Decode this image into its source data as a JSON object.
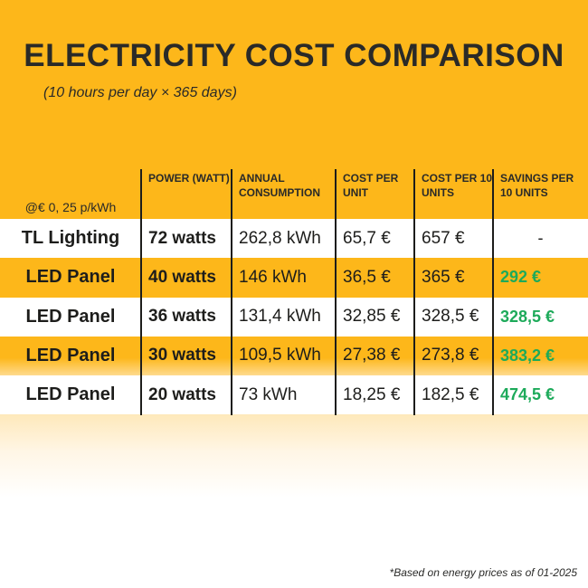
{
  "title": "ELECTRICITY COST COMPARISON",
  "subtitle": "(10 hours per day × 365 days)",
  "table": {
    "headers": [
      "@€ 0, 25 p/kWh",
      "POWER (WATT)",
      "ANNUAL CONSUMPTION",
      "COST PER UNIT",
      "COST PER 10 UNITS",
      "SAVINGS PER 10 UNITS"
    ],
    "rows": [
      [
        "TL Lighting",
        "72 watts",
        "262,8 kWh",
        "65,7 €",
        "657 €",
        "-"
      ],
      [
        "LED Panel",
        "40 watts",
        "146 kWh",
        "36,5 €",
        "365 €",
        "292 €"
      ],
      [
        "LED Panel",
        "36 watts",
        "131,4 kWh",
        "32,85 €",
        "328,5 €",
        "328,5 €"
      ],
      [
        "LED Panel",
        "30 watts",
        "109,5 kWh",
        "27,38 €",
        "273,8 €",
        "383,2 €"
      ],
      [
        "LED Panel",
        "20 watts",
        "73 kWh",
        "18,25 €",
        "182,5 €",
        "474,5 €"
      ]
    ]
  },
  "colors": {
    "background": "#FDB71A",
    "savings": "#1DAA5A",
    "text": "#1d1d1b"
  },
  "footnote": "*Based on energy prices as of 01-2025"
}
